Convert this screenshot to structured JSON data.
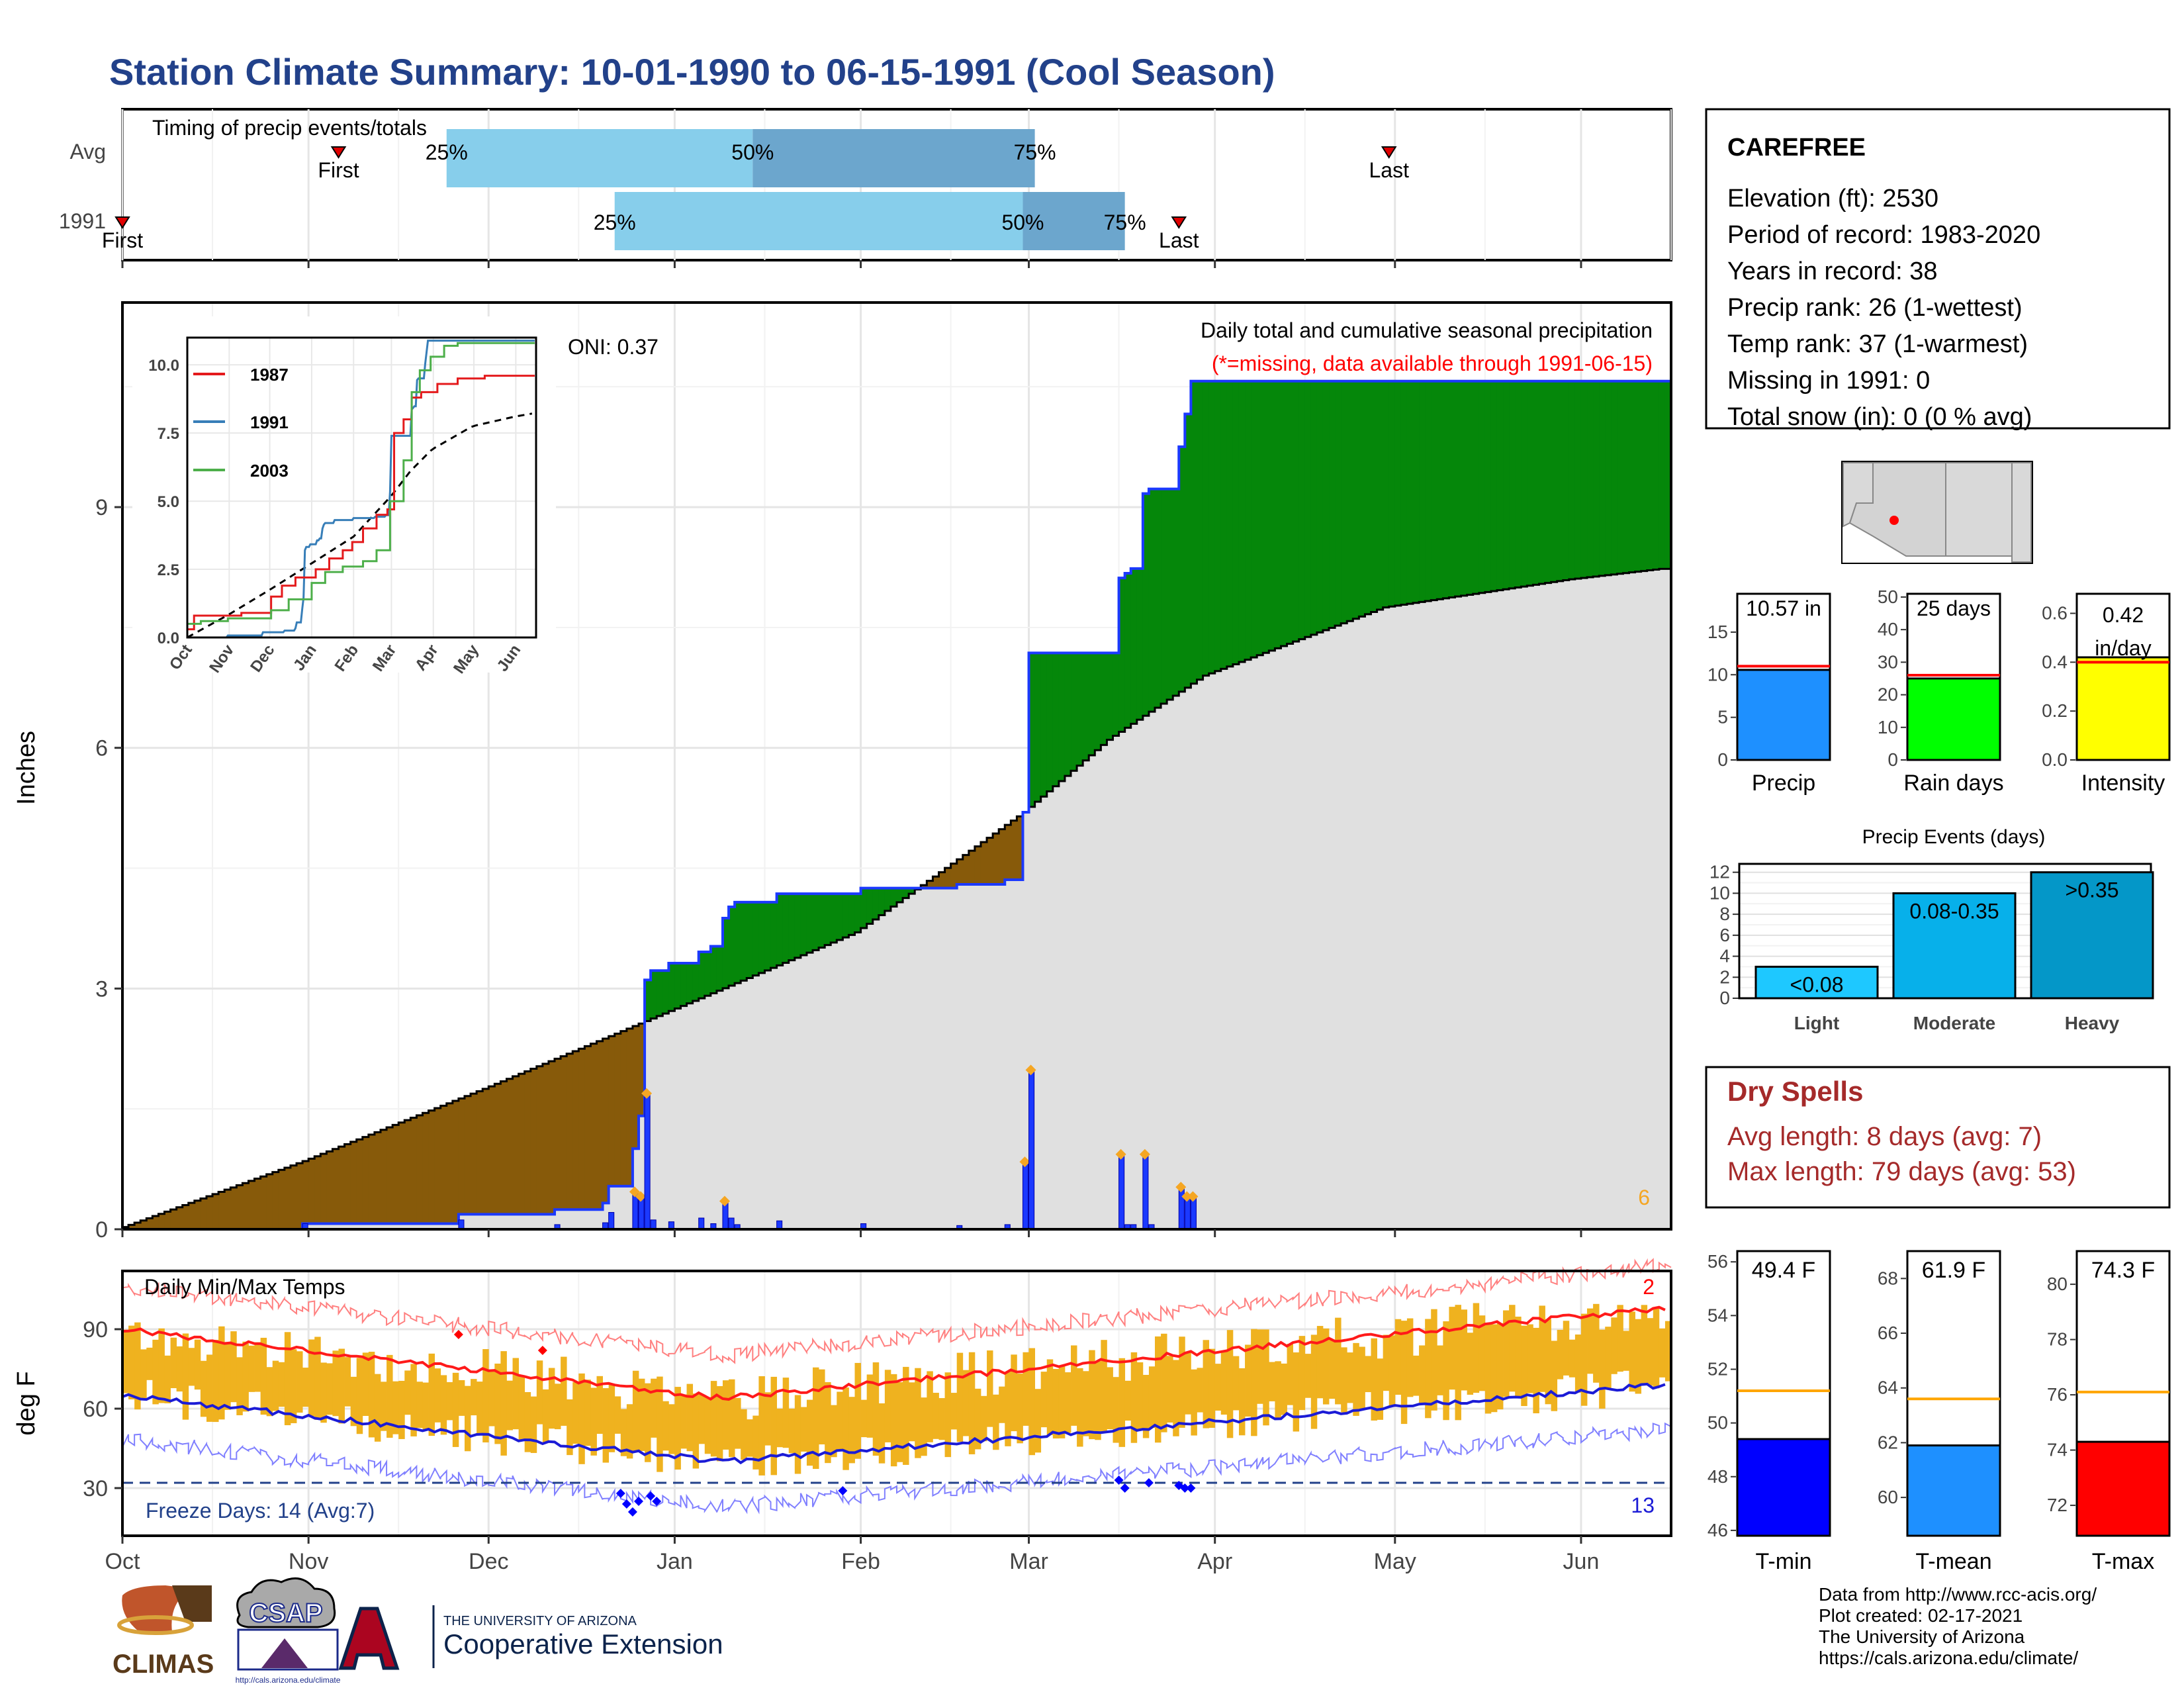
{
  "title": "Station Climate Summary: 10-01-1990 to 06-15-1991 (Cool Season)",
  "months": [
    "Oct",
    "Nov",
    "Dec",
    "Jan",
    "Feb",
    "Mar",
    "Apr",
    "May",
    "Jun"
  ],
  "colors": {
    "title": "#22418a",
    "brown": "#875a0a",
    "green": "#05870a",
    "grey_fill": "#e0e0e0",
    "precip_blue": "#1b39ff",
    "diamond": "#f5a623",
    "bar_light": "#87ceeb",
    "bar_dark": "#6ca6cd",
    "tmax_red": "#ff1a1a",
    "tmin_blue": "#1b1bd6",
    "temp_bar": "#efb21f",
    "dry_red": "#a52a2a"
  },
  "timing": {
    "label": "Timing of precip events/totals",
    "rows": [
      "Avg",
      "1991"
    ],
    "pct_labels": [
      "25%",
      "50%",
      "75%"
    ],
    "first_label": "First",
    "last_label": "Last",
    "avg": {
      "first": "Nov 6",
      "q25": "Nov 24",
      "q50": "Jan 14",
      "q75": "Mar 2",
      "last": "Apr 30"
    },
    "y1991": {
      "first": "Oct 1",
      "q25": "Dec 22",
      "q50": "Feb 28",
      "q75": "Mar 17",
      "last": "Mar 26"
    }
  },
  "precip": {
    "ylabel": "Inches",
    "yticks": [
      "0",
      "3",
      "6",
      "9"
    ],
    "oni": "ONI: 0.37",
    "label_main": "Daily total and cumulative seasonal precipitation",
    "label_missing": "(*=missing, data available through 1991-06-15)",
    "count_label": "6"
  },
  "inset": {
    "yticks": [
      "0.0",
      "2.5",
      "5.0",
      "7.5",
      "10.0"
    ],
    "months": [
      "Oct",
      "Nov",
      "Dec",
      "Jan",
      "Feb",
      "Mar",
      "Apr",
      "May",
      "Jun"
    ],
    "legend": [
      "1987",
      "1991",
      "2003"
    ]
  },
  "temps": {
    "label": "Daily Min/Max Temps",
    "ylabel": "deg F",
    "yticks": [
      "30",
      "60",
      "90"
    ],
    "freeze": "Freeze Days: 14 (Avg:7)",
    "max_count": "2",
    "min_count": "13"
  },
  "station": {
    "name": "CAREFREE",
    "lines": [
      "Elevation (ft): 2530",
      "Period of record: 1983-2020",
      "Years in record: 38",
      "Precip rank: 26 (1-wettest)",
      "Temp rank: 37 (1-warmest)",
      "Missing in 1991: 0",
      "Total snow (in): 0 (0 % avg)"
    ]
  },
  "mini_bars": [
    {
      "label": "Precip",
      "value_text": "10.57 in",
      "value": 10.57,
      "avg": 11.0,
      "yticks": [
        "0",
        "5",
        "10",
        "15"
      ],
      "color": "#1e90ff"
    },
    {
      "label": "Rain days",
      "value_text": "25 days",
      "value": 25,
      "avg": 26,
      "yticks": [
        "0",
        "10",
        "20",
        "30",
        "40",
        "50"
      ],
      "color": "#00ff00"
    },
    {
      "label": "Intensity",
      "value_text_1": "0.42",
      "value_text_2": "in/day",
      "value": 0.42,
      "avg": 0.4,
      "yticks": [
        "0.0",
        "0.2",
        "0.4",
        "0.6"
      ],
      "color": "#ffff00"
    }
  ],
  "events": {
    "title": "Precip Events (days)",
    "yticks": [
      "0",
      "2",
      "4",
      "6",
      "8",
      "10",
      "12"
    ],
    "bars": [
      {
        "cat": "Light",
        "label": "<0.08",
        "value": 3,
        "color": "#1ec8ff"
      },
      {
        "cat": "Moderate",
        "label": "0.08-0.35",
        "value": 10,
        "color": "#07b0ea"
      },
      {
        "cat": "Heavy",
        "label": ">0.35",
        "value": 12,
        "color": "#0497c8"
      }
    ]
  },
  "dry_spells": {
    "title": "Dry Spells",
    "avg_length": "Avg length: 8 days (avg: 7)",
    "max_length": "Max length: 79 days (avg: 53)"
  },
  "temp_bars": [
    {
      "label": "T-min",
      "value_text": "49.4 F",
      "value": 49.4,
      "avg": 51.2,
      "ymin": 45.8,
      "ymax": 56.4,
      "yticks": [
        "46",
        "48",
        "50",
        "52",
        "54",
        "56"
      ],
      "color": "#0000ff"
    },
    {
      "label": "T-mean",
      "value_text": "61.9 F",
      "value": 61.9,
      "avg": 63.6,
      "ymin": 58.6,
      "ymax": 69.0,
      "yticks": [
        "60",
        "62",
        "64",
        "66",
        "68"
      ],
      "color": "#1e90ff"
    },
    {
      "label": "T-max",
      "value_text": "74.3 F",
      "value": 74.3,
      "avg": 76.1,
      "ymin": 70.9,
      "ymax": 81.2,
      "yticks": [
        "72",
        "74",
        "76",
        "78",
        "80"
      ],
      "color": "#ff0000"
    }
  ],
  "credits": [
    "Data from http://www.rcc-acis.org/",
    "Plot created: 02-17-2021",
    "The University of Arizona",
    "https://cals.arizona.edu/climate/"
  ],
  "logos": {
    "climas": "CLIMAS",
    "csap": "CSAP",
    "csap_url": "http://cals.arizona.edu/climate",
    "ua_small": "THE UNIVERSITY OF ARIZONA",
    "ua_big": "Cooperative Extension"
  }
}
